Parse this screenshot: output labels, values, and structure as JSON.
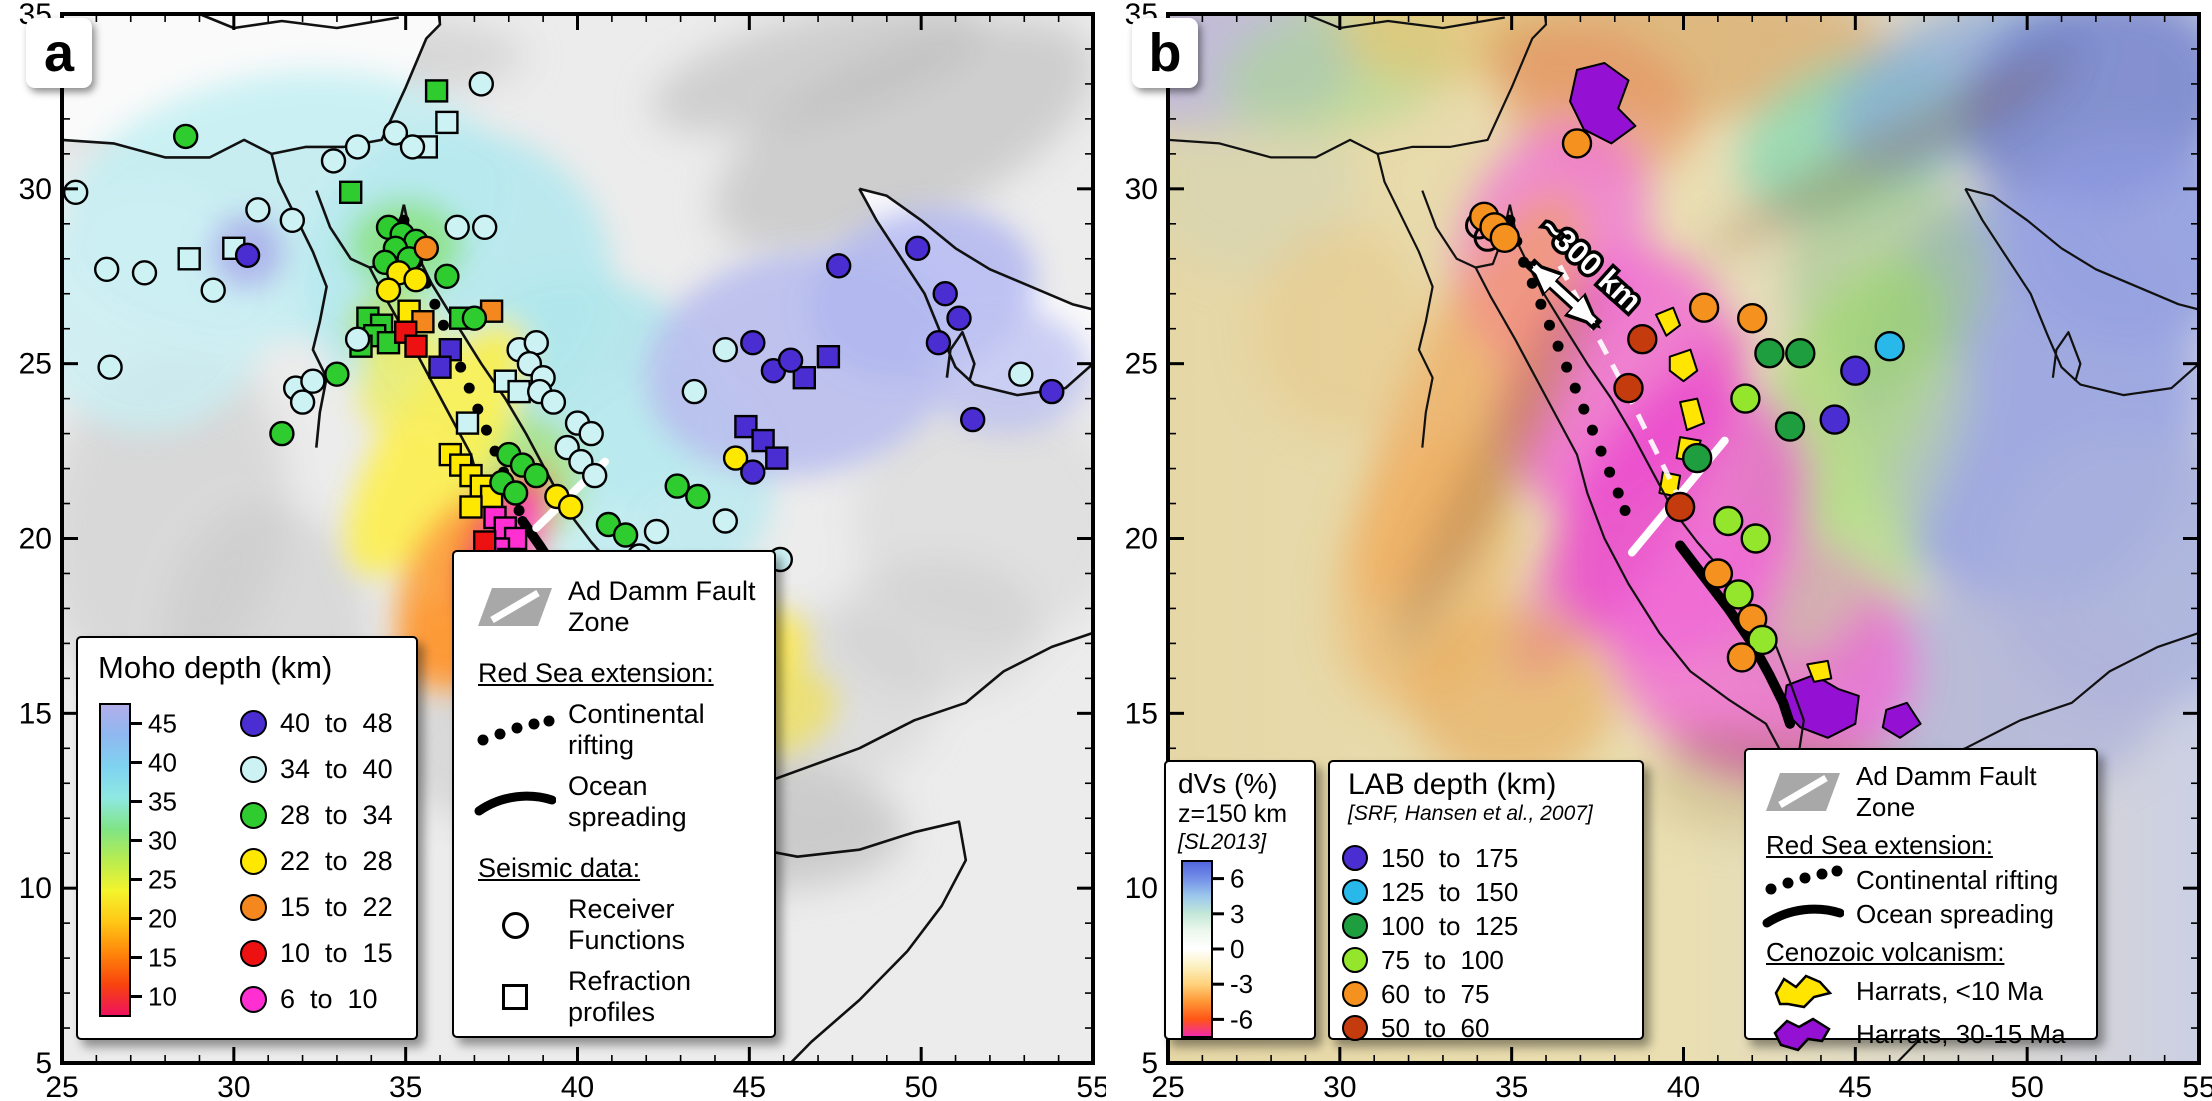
{
  "figure": {
    "axes": {
      "lon_ticks": [
        "25",
        "30",
        "35",
        "40",
        "45",
        "50",
        "55"
      ],
      "lat_ticks": [
        "35",
        "30",
        "25",
        "20",
        "15",
        "10",
        "5"
      ],
      "lon_min": 25,
      "lon_max": 55,
      "lat_min": 5,
      "lat_max": 35
    }
  },
  "panel_a": {
    "label": "a",
    "moho": {
      "title": "Moho depth (km)",
      "colorbar_ticks": [
        45,
        40,
        35,
        30,
        25,
        20,
        15,
        10
      ],
      "colorbar_range": [
        7.5,
        47.5
      ],
      "colorbar_stops_top_to_bottom": [
        "#b2aeea",
        "#8fb8f0",
        "#7fd2f0",
        "#8fe8e2",
        "#7fe486",
        "#b8ec50",
        "#f4f42c",
        "#ffc616",
        "#ff850a",
        "#f8430e",
        "#ee1060"
      ],
      "classes": [
        {
          "label": "40  to  48",
          "color": "#4a2ed2"
        },
        {
          "label": "34  to  40",
          "color": "#cdf2f4"
        },
        {
          "label": "28  to  34",
          "color": "#2ecc2e"
        },
        {
          "label": "22  to  28",
          "color": "#ffe800"
        },
        {
          "label": "15  to  22",
          "color": "#f5871f"
        },
        {
          "label": "10  to  15",
          "color": "#ee1111"
        },
        {
          "label": "6  to  10",
          "color": "#ff2fd2"
        }
      ]
    },
    "legend": {
      "fault_label": "Ad Damm Fault Zone",
      "extension_title": "Red Sea extension:",
      "rifting_label": "Continental rifting",
      "spreading_label": "Ocean spreading",
      "seismic_title": "Seismic data:",
      "receiver_label": "Receiver Functions",
      "refraction_label": "Refraction profiles"
    },
    "receiver_function_points": [
      [
        25.4,
        29.9,
        1
      ],
      [
        26.3,
        27.7,
        1
      ],
      [
        28.6,
        31.5,
        2
      ],
      [
        27.4,
        27.6,
        1
      ],
      [
        29.4,
        27.1,
        1
      ],
      [
        26.4,
        24.9,
        1
      ],
      [
        30.7,
        29.4,
        1
      ],
      [
        31.7,
        29.1,
        1
      ],
      [
        30.4,
        28.1,
        0
      ],
      [
        32.9,
        30.8,
        1
      ],
      [
        33.6,
        31.2,
        1
      ],
      [
        34.7,
        31.6,
        1
      ],
      [
        35.2,
        31.2,
        1
      ],
      [
        37.2,
        33.0,
        1
      ],
      [
        34.5,
        28.9,
        2
      ],
      [
        34.9,
        28.7,
        2
      ],
      [
        35.3,
        28.5,
        2
      ],
      [
        34.7,
        28.3,
        2
      ],
      [
        35.1,
        28.0,
        2
      ],
      [
        34.4,
        27.9,
        2
      ],
      [
        35.6,
        28.3,
        4
      ],
      [
        34.8,
        27.6,
        3
      ],
      [
        35.3,
        27.4,
        3
      ],
      [
        34.5,
        27.1,
        3
      ],
      [
        36.5,
        28.9,
        1
      ],
      [
        37.3,
        28.9,
        1
      ],
      [
        36.2,
        27.5,
        2
      ],
      [
        37.0,
        26.3,
        2
      ],
      [
        33.6,
        25.7,
        1
      ],
      [
        33.0,
        24.7,
        2
      ],
      [
        31.8,
        24.3,
        1
      ],
      [
        32.3,
        24.5,
        1
      ],
      [
        32.0,
        23.9,
        1
      ],
      [
        31.4,
        23.0,
        2
      ],
      [
        38.3,
        25.4,
        1
      ],
      [
        38.8,
        25.6,
        1
      ],
      [
        38.6,
        25.0,
        1
      ],
      [
        39.0,
        24.6,
        1
      ],
      [
        38.9,
        24.2,
        1
      ],
      [
        39.3,
        23.9,
        1
      ],
      [
        40.0,
        23.3,
        1
      ],
      [
        40.4,
        23.0,
        1
      ],
      [
        39.7,
        22.6,
        1
      ],
      [
        40.1,
        22.2,
        1
      ],
      [
        40.5,
        21.8,
        1
      ],
      [
        38.0,
        22.4,
        2
      ],
      [
        38.4,
        22.1,
        2
      ],
      [
        38.8,
        21.8,
        2
      ],
      [
        37.8,
        21.6,
        2
      ],
      [
        38.2,
        21.3,
        2
      ],
      [
        39.4,
        21.2,
        3
      ],
      [
        39.8,
        20.9,
        3
      ],
      [
        40.9,
        20.4,
        2
      ],
      [
        41.4,
        20.1,
        2
      ],
      [
        41.8,
        19.5,
        1
      ],
      [
        42.2,
        19.0,
        1
      ],
      [
        42.6,
        18.5,
        1
      ],
      [
        43.0,
        18.0,
        1
      ],
      [
        43.4,
        17.5,
        1
      ],
      [
        40.7,
        17.9,
        1
      ],
      [
        41.2,
        17.4,
        1
      ],
      [
        42.6,
        17.3,
        2
      ],
      [
        43.1,
        16.9,
        2
      ],
      [
        43.8,
        16.4,
        2
      ],
      [
        44.3,
        25.4,
        1
      ],
      [
        45.1,
        25.6,
        0
      ],
      [
        45.7,
        24.8,
        0
      ],
      [
        43.4,
        24.2,
        1
      ],
      [
        46.2,
        25.1,
        0
      ],
      [
        47.6,
        27.8,
        0
      ],
      [
        49.9,
        28.3,
        0
      ],
      [
        50.7,
        27.0,
        0
      ],
      [
        51.1,
        26.3,
        0
      ],
      [
        50.5,
        25.6,
        0
      ],
      [
        52.9,
        24.7,
        1
      ],
      [
        53.8,
        24.2,
        0
      ],
      [
        51.5,
        23.4,
        0
      ],
      [
        44.6,
        22.3,
        3
      ],
      [
        45.1,
        21.9,
        0
      ],
      [
        42.9,
        21.5,
        2
      ],
      [
        43.5,
        21.2,
        2
      ],
      [
        44.3,
        20.5,
        1
      ],
      [
        42.3,
        20.2,
        1
      ],
      [
        45.9,
        19.4,
        1
      ]
    ],
    "refraction_points": [
      [
        35.9,
        32.8,
        2
      ],
      [
        36.2,
        31.9,
        1
      ],
      [
        35.6,
        31.2,
        1
      ],
      [
        33.4,
        29.9,
        2
      ],
      [
        30.0,
        28.3,
        1
      ],
      [
        28.7,
        28.0,
        1
      ],
      [
        33.9,
        26.3,
        2
      ],
      [
        34.3,
        26.1,
        2
      ],
      [
        34.1,
        25.8,
        2
      ],
      [
        33.7,
        25.5,
        2
      ],
      [
        34.5,
        25.6,
        2
      ],
      [
        35.1,
        26.5,
        3
      ],
      [
        35.5,
        26.2,
        4
      ],
      [
        35.0,
        25.9,
        5
      ],
      [
        35.3,
        25.5,
        5
      ],
      [
        36.6,
        26.3,
        2
      ],
      [
        37.5,
        26.5,
        4
      ],
      [
        36.3,
        25.4,
        0
      ],
      [
        36.0,
        24.9,
        0
      ],
      [
        37.9,
        24.5,
        1
      ],
      [
        38.3,
        24.2,
        1
      ],
      [
        36.8,
        23.3,
        1
      ],
      [
        36.3,
        22.4,
        3
      ],
      [
        36.6,
        22.1,
        3
      ],
      [
        36.9,
        21.8,
        3
      ],
      [
        37.2,
        21.5,
        3
      ],
      [
        37.5,
        21.2,
        3
      ],
      [
        36.9,
        20.9,
        3
      ],
      [
        37.6,
        20.6,
        6
      ],
      [
        37.9,
        20.3,
        6
      ],
      [
        38.2,
        20.0,
        6
      ],
      [
        37.7,
        19.7,
        6
      ],
      [
        38.0,
        19.4,
        6
      ],
      [
        38.4,
        19.0,
        6
      ],
      [
        37.3,
        19.9,
        5
      ],
      [
        37.1,
        18.9,
        5
      ],
      [
        36.9,
        17.7,
        5
      ],
      [
        37.2,
        17.4,
        5
      ],
      [
        40.3,
        17.2,
        3
      ],
      [
        40.7,
        16.9,
        3
      ],
      [
        41.1,
        16.6,
        4
      ],
      [
        41.5,
        16.3,
        4
      ],
      [
        41.9,
        16.0,
        6
      ],
      [
        42.2,
        15.7,
        6
      ],
      [
        41.7,
        15.4,
        5
      ],
      [
        42.0,
        15.1,
        5
      ],
      [
        42.4,
        14.9,
        5
      ],
      [
        42.7,
        14.6,
        5
      ],
      [
        42.3,
        14.3,
        5
      ],
      [
        43.2,
        15.2,
        2
      ],
      [
        43.7,
        15.4,
        3
      ],
      [
        44.1,
        15.2,
        2
      ],
      [
        44.6,
        15.3,
        3
      ],
      [
        45.0,
        15.1,
        2
      ],
      [
        44.9,
        23.2,
        0
      ],
      [
        45.4,
        22.8,
        0
      ],
      [
        46.6,
        24.6,
        0
      ],
      [
        45.8,
        22.3,
        0
      ],
      [
        47.3,
        25.2,
        0
      ]
    ]
  },
  "panel_b": {
    "label": "b",
    "dvs": {
      "title_line1": "dVs (%)",
      "title_line2": "z=150 km",
      "title_line3": "[SL2013]",
      "colorbar_ticks": [
        6,
        3,
        0,
        -3,
        -6
      ],
      "colorbar_range": [
        -7.5,
        7.5
      ],
      "colorbar_stops_top_to_bottom": [
        "#4f63dc",
        "#7490e8",
        "#9cc8ec",
        "#c4e8d8",
        "#eef8ee",
        "#ffffff",
        "#fcf0c0",
        "#ffd27c",
        "#ff9636",
        "#ff5416",
        "#f228b2"
      ]
    },
    "lab": {
      "title": "LAB depth (km)",
      "source": "[SRF, Hansen et al., 2007]",
      "classes": [
        {
          "label": "150  to  175",
          "color": "#4a2ed2"
        },
        {
          "label": "125  to  150",
          "color": "#29b8ea"
        },
        {
          "label": "100  to  125",
          "color": "#1f9e40"
        },
        {
          "label": "75  to  100",
          "color": "#93e62c"
        },
        {
          "label": "60  to  75",
          "color": "#f5921f"
        },
        {
          "label": "50  to  60",
          "color": "#c43c0e"
        }
      ]
    },
    "legend": {
      "fault_label": "Ad Damm Fault Zone",
      "extension_title": "Red Sea extension:",
      "rifting_label": "Continental rifting",
      "spreading_label": "Ocean spreading",
      "volcanism_title": "Cenozoic volcanism:",
      "harrat_young_label": "Harrats, <10 Ma",
      "harrat_old_label": "Harrats, 30-15 Ma",
      "harrat_young_color": "#ffe500",
      "harrat_old_color": "#9410d2"
    },
    "annotation": {
      "distance_label": "~300 km"
    },
    "lab_points": [
      [
        34.2,
        29.2,
        4
      ],
      [
        34.5,
        28.9,
        4
      ],
      [
        34.8,
        28.6,
        4
      ],
      [
        36.9,
        31.3,
        4
      ],
      [
        40.6,
        26.6,
        4
      ],
      [
        42.0,
        26.3,
        4
      ],
      [
        38.8,
        25.7,
        5
      ],
      [
        42.5,
        25.3,
        2
      ],
      [
        43.4,
        25.3,
        2
      ],
      [
        46.0,
        25.5,
        1
      ],
      [
        45.0,
        24.8,
        0
      ],
      [
        38.4,
        24.3,
        5
      ],
      [
        41.8,
        24.0,
        3
      ],
      [
        43.1,
        23.2,
        2
      ],
      [
        44.4,
        23.4,
        0
      ],
      [
        40.4,
        22.3,
        2
      ],
      [
        39.9,
        20.9,
        5
      ],
      [
        41.3,
        20.5,
        3
      ],
      [
        42.1,
        20.0,
        3
      ],
      [
        41.0,
        19.0,
        4
      ],
      [
        41.6,
        18.4,
        3
      ],
      [
        42.0,
        17.7,
        4
      ],
      [
        42.3,
        17.1,
        3
      ],
      [
        41.7,
        16.6,
        4
      ]
    ],
    "open_ring_points": [
      [
        34.05,
        28.95
      ],
      [
        34.3,
        28.6
      ]
    ]
  }
}
